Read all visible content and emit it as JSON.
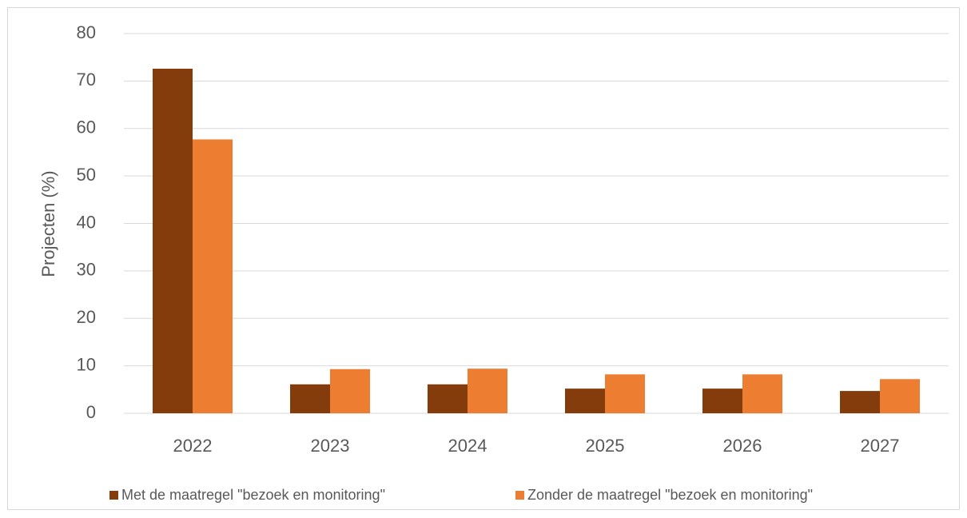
{
  "chart_data": {
    "type": "bar",
    "y_label": "Projecten (%)",
    "categories": [
      "2022",
      "2023",
      "2024",
      "2025",
      "2026",
      "2027"
    ],
    "series": [
      {
        "name": "Met de maatregel \"bezoek en monitoring\"",
        "color": "#843c0c",
        "values": [
          72.6,
          6.1,
          6.1,
          5.2,
          5.2,
          4.7
        ]
      },
      {
        "name": "Zonder de maatregel \"bezoek en monitoring\"",
        "color": "#ed7d31",
        "values": [
          57.7,
          9.3,
          9.4,
          8.2,
          8.2,
          7.2
        ]
      }
    ],
    "ylim": [
      0,
      80
    ],
    "yticks": [
      0,
      10,
      20,
      30,
      40,
      50,
      60,
      70,
      80
    ],
    "grid": true
  }
}
